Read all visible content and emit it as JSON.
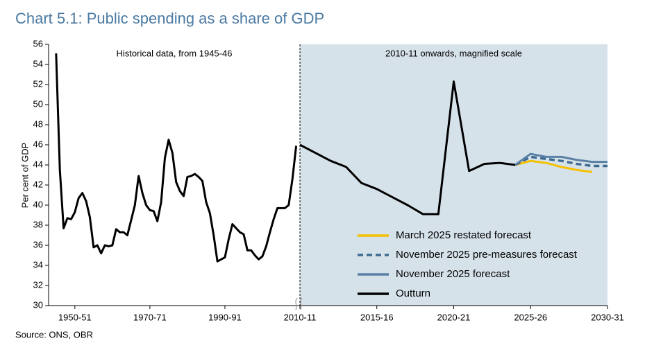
{
  "title": "Chart 5.1: Public spending as a share of GDP",
  "source": "Source: ONS, OBR",
  "chart_data": [
    {
      "type": "line",
      "annotation": "Historical data, from 1945-46",
      "y_label": "Per cent of GDP",
      "xlim": [
        1943,
        2010
      ],
      "xticks": [
        {
          "value": 1950,
          "label": "1950-51"
        },
        {
          "value": 1970,
          "label": "1970-71"
        },
        {
          "value": 1990,
          "label": "1990-91"
        }
      ],
      "ylim": [
        30,
        56
      ],
      "yticks": [
        30,
        32,
        34,
        36,
        38,
        40,
        42,
        44,
        46,
        48,
        50,
        52,
        54,
        56
      ],
      "series": [
        {
          "name": "Outturn",
          "color": "#000000",
          "x": [
            1945,
            1946,
            1947,
            1948,
            1949,
            1950,
            1951,
            1952,
            1953,
            1954,
            1955,
            1956,
            1957,
            1958,
            1959,
            1960,
            1961,
            1962,
            1963,
            1964,
            1965,
            1966,
            1967,
            1968,
            1969,
            1970,
            1971,
            1972,
            1973,
            1974,
            1975,
            1976,
            1977,
            1978,
            1979,
            1980,
            1981,
            1982,
            1983,
            1984,
            1985,
            1986,
            1987,
            1988,
            1989,
            1990,
            1991,
            1992,
            1993,
            1994,
            1995,
            1996,
            1997,
            1998,
            1999,
            2000,
            2001,
            2002,
            2003,
            2004,
            2005,
            2006,
            2007,
            2008,
            2009
          ],
          "values": [
            55.1,
            43.5,
            37.7,
            38.7,
            38.6,
            39.3,
            40.7,
            41.2,
            40.4,
            38.8,
            35.8,
            36.0,
            35.2,
            36.0,
            35.9,
            36.0,
            37.6,
            37.3,
            37.3,
            37.0,
            38.5,
            40.0,
            42.9,
            41.2,
            40.0,
            39.5,
            39.4,
            38.4,
            40.3,
            44.7,
            46.5,
            45.2,
            42.3,
            41.4,
            40.9,
            42.8,
            42.9,
            43.1,
            42.8,
            42.4,
            40.3,
            39.2,
            37.0,
            34.4,
            34.6,
            34.8,
            36.6,
            38.1,
            37.7,
            37.3,
            37.1,
            35.5,
            35.5,
            35.0,
            34.6,
            34.9,
            35.9,
            37.3,
            38.6,
            39.7,
            39.7,
            39.7,
            40.0,
            42.6,
            45.9
          ]
        }
      ]
    },
    {
      "type": "line",
      "annotation": "2010-11 onwards, magnified scale",
      "background": "#d6e2ea",
      "legend": "lower right",
      "xlim": [
        2010,
        2030
      ],
      "xticks": [
        {
          "value": 2010,
          "label": "2010-11"
        },
        {
          "value": 2015,
          "label": "2015-16"
        },
        {
          "value": 2020,
          "label": "2020-21"
        },
        {
          "value": 2025,
          "label": "2025-26"
        },
        {
          "value": 2030,
          "label": "2030-31"
        }
      ],
      "ylim": [
        30,
        56
      ],
      "series": [
        {
          "name": "March 2025 restated forecast",
          "color": "#f5c000",
          "x": [
            2024,
            2025,
            2026,
            2027,
            2028,
            2029
          ],
          "values": [
            44.0,
            44.4,
            44.2,
            43.8,
            43.5,
            43.3
          ]
        },
        {
          "name": "November 2025 pre-measures forecast",
          "color": "#3f6a90",
          "dash": true,
          "x": [
            2024,
            2025,
            2026,
            2027,
            2028,
            2029,
            2030
          ],
          "values": [
            44.0,
            44.8,
            44.6,
            44.4,
            44.1,
            43.9,
            43.9
          ]
        },
        {
          "name": "November 2025 forecast",
          "color": "#5a80a6",
          "x": [
            2024,
            2025,
            2026,
            2027,
            2028,
            2029,
            2030
          ],
          "values": [
            44.0,
            45.1,
            44.8,
            44.8,
            44.5,
            44.3,
            44.3
          ]
        },
        {
          "name": "Outturn",
          "color": "#000000",
          "x": [
            2010,
            2011,
            2012,
            2013,
            2014,
            2015,
            2016,
            2017,
            2018,
            2019,
            2020,
            2021,
            2022,
            2023,
            2024
          ],
          "values": [
            46.0,
            45.2,
            44.4,
            43.8,
            42.2,
            41.6,
            40.8,
            40.0,
            39.1,
            39.1,
            52.3,
            43.4,
            44.1,
            44.2,
            44.0
          ]
        }
      ]
    }
  ]
}
